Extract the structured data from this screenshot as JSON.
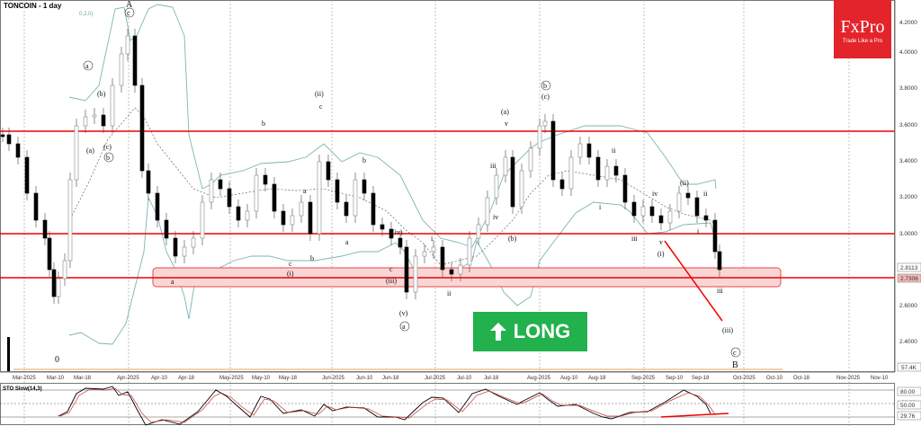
{
  "header": {
    "title": "TONCOIN - 1 day",
    "bb_label": "0,2,0)"
  },
  "brand": {
    "name": "FxPro",
    "tagline": "Trade Like a Pro",
    "color": "#e3242b"
  },
  "signal": {
    "label": "LONG",
    "direction": "up",
    "color": "#22b14c"
  },
  "indicator": {
    "label": "STO Slow(14,3)",
    "levels": [
      "80.00",
      "60.00",
      "50.00",
      "29.76"
    ]
  },
  "price_axis": {
    "ticks": [
      "4.2000",
      "4.0000",
      "3.8000",
      "3.6000",
      "3.4000",
      "3.2000",
      "3.0000",
      "2.6000",
      "2.4000"
    ],
    "current_labels": [
      "2.8113",
      "2.7306"
    ],
    "volume_label": "57.4K"
  },
  "time_axis": {
    "ticks": [
      "Mar-2025",
      "Mar-10",
      "Mar-18",
      "Apr-2025",
      "Apr-10",
      "Apr-18",
      "May-2025",
      "May-10",
      "May-18",
      "Jun-2025",
      "Jun-10",
      "Jun-18",
      "Jul-2025",
      "Jul-10",
      "Jul-18",
      "Aug-2025",
      "Aug-10",
      "Aug-18",
      "Sep-2025",
      "Sep-10",
      "Sep-18",
      "Oct-2025",
      "Oct-10",
      "Oct-18",
      "Nov-2025",
      "Nov-10"
    ]
  },
  "wave_labels": [
    "A",
    "c",
    "a",
    "(a)",
    "(b)",
    "(c)",
    "b",
    "0",
    "a",
    "b",
    "(ii)",
    "c",
    "c",
    "(i)",
    "a",
    "b",
    "a",
    "b",
    "c",
    "(iii)",
    "(iv)",
    "(v)",
    "a",
    "i",
    "ii",
    "iii",
    "iv",
    "v",
    "(a)",
    "(b)",
    "b",
    "(c)",
    "i",
    "ii",
    "iii",
    "iv",
    "v",
    "(i)",
    "(ii)",
    "i",
    "ii",
    "iii",
    "(iii)",
    "c",
    "B"
  ],
  "chart_data": {
    "type": "candlestick",
    "title": "TONCOIN - 1 day",
    "xlabel": "",
    "ylabel": "Price",
    "ylim": [
      2.3,
      4.25
    ],
    "x": [
      "Mar-2025",
      "Mar-10",
      "Mar-18",
      "Apr-2025",
      "Apr-10",
      "Apr-18",
      "May-2025",
      "May-10",
      "May-18",
      "Jun-2025",
      "Jun-10",
      "Jun-18",
      "Jul-2025",
      "Jul-10",
      "Jul-18",
      "Aug-2025",
      "Aug-10",
      "Aug-18",
      "Sep-2025",
      "Sep-10",
      "Sep-18"
    ],
    "series": [
      {
        "name": "Close (approx)",
        "values": [
          3.45,
          2.75,
          3.55,
          3.9,
          2.95,
          3.05,
          3.2,
          3.05,
          2.95,
          3.3,
          3.05,
          2.8,
          2.75,
          3.0,
          3.3,
          3.6,
          3.4,
          3.15,
          3.05,
          3.15,
          2.78
        ]
      }
    ],
    "horizontal_levels": [
      3.56,
      3.0,
      2.73
    ],
    "support_zone": [
      2.7,
      2.81
    ],
    "annotations": [
      "Elliott wave labels",
      "LONG signal",
      "Support zone 2.7306-2.8113"
    ],
    "indicator": {
      "name": "STO Slow(14,3)",
      "levels": [
        80,
        50,
        20
      ],
      "last": 29.76
    },
    "grid": true,
    "legend": "none"
  }
}
